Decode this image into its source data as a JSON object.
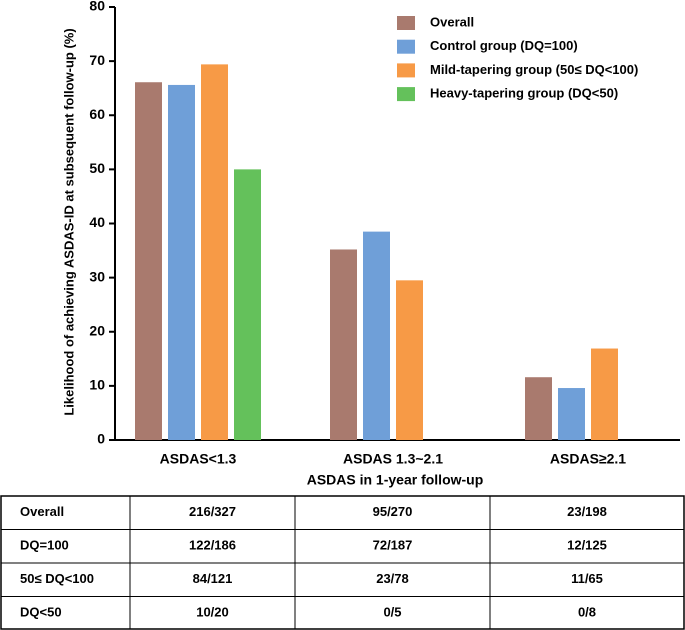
{
  "chart_data": {
    "type": "bar",
    "y_label": "Likelihood of achieving ASDAS-ID at subsequent follow-up (%)",
    "x_label": "ASDAS in 1-year follow-up",
    "categories": [
      "ASDAS<1.3",
      "ASDAS 1.3~2.1",
      "ASDAS≥2.1"
    ],
    "series": [
      {
        "name": "Overall",
        "color": "#a97a6e",
        "values": [
          66.1,
          35.2,
          11.6
        ]
      },
      {
        "name": "Control group (DQ=100)",
        "color": "#6f9fd8",
        "values": [
          65.6,
          38.5,
          9.6
        ]
      },
      {
        "name": "Mild-tapering group (50≤ DQ<100)",
        "color": "#f79a46",
        "values": [
          69.4,
          29.5,
          16.9
        ]
      },
      {
        "name": "Heavy-tapering group (DQ<50)",
        "color": "#64c15b",
        "values": [
          50,
          0,
          0
        ]
      }
    ],
    "ylim": [
      0,
      80
    ],
    "yticks": [
      0,
      10,
      20,
      30,
      40,
      50,
      60,
      70,
      80
    ],
    "legend": "top-right"
  },
  "table": {
    "rows": [
      [
        "Overall",
        "216/327",
        "95/270",
        "23/198"
      ],
      [
        "DQ=100",
        "122/186",
        "72/187",
        "12/125"
      ],
      [
        "50≤ DQ<100",
        "84/121",
        "23/78",
        "11/65"
      ],
      [
        "DQ<50",
        "10/20",
        "0/5",
        "0/8"
      ]
    ]
  }
}
